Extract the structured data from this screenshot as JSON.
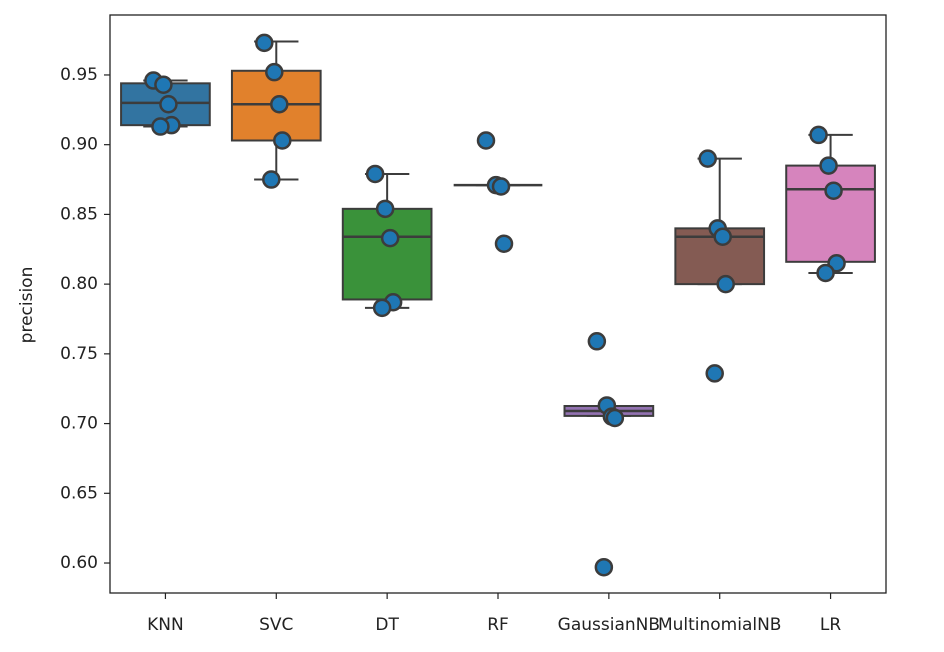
{
  "chart_data": {
    "type": "box",
    "ylabel": "precision",
    "categories": [
      "KNN",
      "SVC",
      "DT",
      "RF",
      "GaussianNB",
      "MultinomialNB",
      "LR"
    ],
    "boxes": [
      {
        "color": "#3274a1",
        "low": 0.913,
        "q1": 0.914,
        "median": 0.93,
        "q3": 0.944,
        "high": 0.946,
        "points": [
          0.946,
          0.943,
          0.929,
          0.914,
          0.913
        ]
      },
      {
        "color": "#e1812c",
        "low": 0.875,
        "q1": 0.903,
        "median": 0.929,
        "q3": 0.953,
        "high": 0.974,
        "points": [
          0.973,
          0.952,
          0.929,
          0.903,
          0.875
        ]
      },
      {
        "color": "#3a923a",
        "low": 0.783,
        "q1": 0.789,
        "median": 0.834,
        "q3": 0.854,
        "high": 0.879,
        "points": [
          0.879,
          0.854,
          0.833,
          0.787,
          0.783
        ]
      },
      {
        "color": "#c03d3e",
        "low": 0.871,
        "q1": 0.871,
        "median": 0.871,
        "q3": 0.871,
        "high": 0.871,
        "points": [
          0.903,
          0.871,
          0.87,
          0.829
        ]
      },
      {
        "color": "#9372b2",
        "low": 0.7055,
        "q1": 0.7055,
        "median": 0.709,
        "q3": 0.7126,
        "high": 0.7126,
        "points": [
          0.759,
          0.713,
          0.705,
          0.704,
          0.597
        ]
      },
      {
        "color": "#845b53",
        "low": 0.8,
        "q1": 0.8,
        "median": 0.834,
        "q3": 0.84,
        "high": 0.89,
        "points": [
          0.89,
          0.84,
          0.834,
          0.8,
          0.736
        ]
      },
      {
        "color": "#d684bd",
        "low": 0.808,
        "q1": 0.816,
        "median": 0.868,
        "q3": 0.885,
        "high": 0.907,
        "points": [
          0.907,
          0.885,
          0.867,
          0.815,
          0.808
        ]
      }
    ],
    "point_color": "#1f77b4",
    "ylim": [
      0.5785,
      0.993
    ],
    "yticks": [
      {
        "value": 0.6,
        "label": "0.60"
      },
      0.65,
      {
        "value": 0.7,
        "label": "0.70"
      },
      0.75,
      {
        "value": 0.8,
        "label": "0.80"
      },
      0.85,
      {
        "value": 0.9,
        "label": "0.90"
      },
      0.95
    ]
  }
}
